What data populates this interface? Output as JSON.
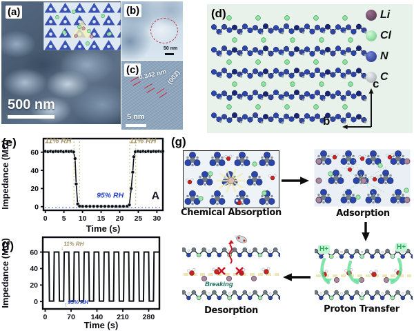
{
  "figure": {
    "panels": {
      "a": {
        "label": "(a)",
        "scale_bar": "500 nm"
      },
      "b": {
        "label": "(b)",
        "scale_bar": "50 nm"
      },
      "c": {
        "label": "(c)",
        "scale_bar": "5 nm",
        "spacing_label": "0.342 nm",
        "plane_label": "(002)"
      },
      "d": {
        "label": "(d)",
        "axis_up": "c",
        "axis_left": "b",
        "legend": [
          {
            "symbol": "Li",
            "color": "#6d4967"
          },
          {
            "symbol": "Cl",
            "color": "#8fe3a0"
          },
          {
            "symbol": "N",
            "color": "#2b45ab"
          },
          {
            "symbol": "C",
            "color": "#c3c9cc"
          }
        ]
      },
      "e": {
        "label": "(e)"
      },
      "f": {
        "label": "(f)"
      },
      "g": {
        "label": "(g)",
        "steps": [
          {
            "name": "Chemical Absorption"
          },
          {
            "name": "Adsorption"
          },
          {
            "name": "Proton Transfer"
          },
          {
            "name": "Desorption"
          }
        ],
        "proton_label": "H+",
        "breaking_label": "Breaking"
      }
    }
  },
  "chart_data": [
    {
      "id": "e",
      "type": "line",
      "xlabel": "Time (s)",
      "ylabel": "Impedance (MΩ)",
      "xlim": [
        -0.5,
        31.6
      ],
      "ylim": [
        -4,
        75
      ],
      "xticks": [
        0,
        5,
        10,
        15,
        20,
        25,
        30
      ],
      "yticks": [
        0,
        20,
        40,
        60
      ],
      "marker": true,
      "margins": {
        "l": 63,
        "r": 9,
        "t": 8,
        "b": 35
      },
      "points": [
        [
          0,
          61
        ],
        [
          0.7,
          60.6
        ],
        [
          1.4,
          61
        ],
        [
          2.1,
          60.5
        ],
        [
          2.8,
          61
        ],
        [
          3.5,
          60.7
        ],
        [
          4.2,
          61
        ],
        [
          4.9,
          60.5
        ],
        [
          5.6,
          61
        ],
        [
          6.3,
          60.7
        ],
        [
          7.0,
          61
        ],
        [
          7.6,
          60.3
        ],
        [
          8.0,
          53
        ],
        [
          8.3,
          25
        ],
        [
          8.7,
          3
        ],
        [
          9.2,
          0.6
        ],
        [
          10,
          0.4
        ],
        [
          11,
          0.4
        ],
        [
          12,
          0.4
        ],
        [
          13,
          0.4
        ],
        [
          14,
          0.4
        ],
        [
          15,
          0.4
        ],
        [
          16,
          0.4
        ],
        [
          17,
          0.4
        ],
        [
          18,
          0.4
        ],
        [
          19,
          0.4
        ],
        [
          20,
          0.4
        ],
        [
          21,
          0.4
        ],
        [
          22,
          0.5
        ],
        [
          22.6,
          2
        ],
        [
          23.1,
          20
        ],
        [
          23.5,
          38
        ],
        [
          23.8,
          55
        ],
        [
          24.2,
          60.5
        ],
        [
          24.9,
          61
        ],
        [
          25.6,
          60.6
        ],
        [
          26.3,
          61
        ],
        [
          27,
          60.6
        ],
        [
          27.7,
          61
        ],
        [
          28.4,
          60.6
        ],
        [
          29.1,
          61
        ],
        [
          29.8,
          60.7
        ],
        [
          30.5,
          61
        ],
        [
          31.2,
          60.7
        ],
        [
          31.6,
          61
        ]
      ],
      "guides": {
        "vlines": {
          "x": [
            7.7,
            9.2,
            22.7,
            24.3
          ],
          "color": "#cfc08a",
          "from": 72,
          "to": -2
        },
        "hline": {
          "y": -1,
          "color": "#4a66cc"
        }
      },
      "annotations": [
        {
          "text": "11% RH",
          "x": -0.1,
          "y": 70,
          "color": "#a08f60",
          "size": 10.5,
          "italic": true,
          "anchor": "start"
        },
        {
          "text": "11% RH",
          "x": 22.7,
          "y": 70,
          "color": "#a08f60",
          "size": 10.5,
          "italic": true,
          "anchor": "start"
        },
        {
          "text": "95% RH",
          "x": 13.8,
          "y": 10,
          "color": "#2543c9",
          "size": 10.5,
          "italic": true,
          "anchor": "start"
        },
        {
          "text": "A",
          "x": 30.7,
          "y": 8,
          "color": "#141827",
          "size": 16,
          "italic": false,
          "anchor": "end"
        }
      ]
    },
    {
      "id": "f",
      "type": "line",
      "xlabel": "Time (s)",
      "ylabel": "Impedance (MΩ)",
      "xlim": [
        -6.5,
        309
      ],
      "ylim": [
        -9,
        78
      ],
      "xticks": [
        0,
        70,
        140,
        210,
        280
      ],
      "yticks": [
        0,
        20,
        40,
        60
      ],
      "marker": false,
      "margins": {
        "l": 62,
        "r": 14,
        "t": 14,
        "b": 32
      },
      "square_wave": {
        "high": 60,
        "low": 0.5,
        "first_drop": 10,
        "low_duration": 13,
        "period": 27,
        "cycles": 11,
        "ramp": 1.5
      },
      "annotations": [
        {
          "text": "↓",
          "x": 42,
          "y": 63,
          "color": "#b0a070",
          "size": 8,
          "italic": false,
          "anchor": "start"
        },
        {
          "text": "11% RH",
          "x": 50,
          "y": 67.5,
          "color": "#a08f60",
          "size": 8,
          "italic": true,
          "anchor": "start"
        },
        {
          "text": "↑",
          "x": 52,
          "y": -6,
          "color": "#2543c9",
          "size": 8,
          "italic": false,
          "anchor": "start"
        },
        {
          "text": "95% RH",
          "x": 61,
          "y": -3,
          "color": "#2543c9",
          "size": 8,
          "italic": true,
          "anchor": "start"
        }
      ]
    }
  ]
}
